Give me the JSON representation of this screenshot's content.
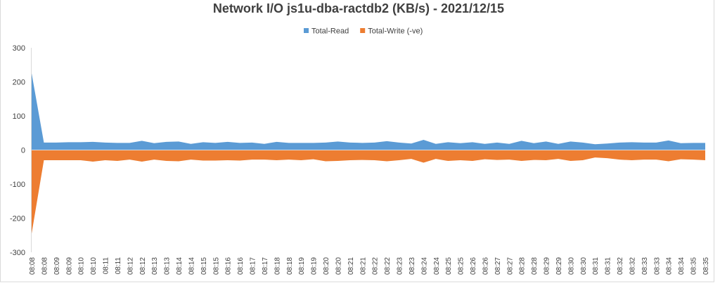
{
  "chart_data": {
    "type": "area",
    "title": "Network I/O js1u-dba-ractdb2 (KB/s) - 2021/12/15",
    "categories": [
      "08:08",
      "08:08",
      "08:09",
      "08:09",
      "08:10",
      "08:10",
      "08:11",
      "08:11",
      "08:12",
      "08:12",
      "08:13",
      "08:13",
      "08:14",
      "08:14",
      "08:15",
      "08:15",
      "08:16",
      "08:16",
      "08:17",
      "08:17",
      "08:18",
      "08:18",
      "08:19",
      "08:19",
      "08:20",
      "08:20",
      "08:21",
      "08:21",
      "08:22",
      "08:22",
      "08:23",
      "08:23",
      "08:24",
      "08:24",
      "08:25",
      "08:25",
      "08:26",
      "08:26",
      "08:27",
      "08:27",
      "08:28",
      "08:28",
      "08:29",
      "08:29",
      "08:30",
      "08:30",
      "08:31",
      "08:31",
      "08:32",
      "08:32",
      "08:33",
      "08:33",
      "08:34",
      "08:34",
      "08:35",
      "08:35"
    ],
    "series": [
      {
        "name": "Total-Read",
        "color": "#5b9bd5",
        "values": [
          225,
          22,
          22,
          23,
          23,
          24,
          22,
          21,
          21,
          27,
          20,
          24,
          25,
          18,
          23,
          21,
          24,
          21,
          22,
          18,
          24,
          21,
          21,
          21,
          22,
          25,
          22,
          21,
          22,
          26,
          22,
          19,
          30,
          18,
          23,
          20,
          23,
          18,
          22,
          18,
          27,
          20,
          25,
          18,
          25,
          22,
          17,
          19,
          22,
          23,
          22,
          22,
          28,
          20,
          21,
          21
        ]
      },
      {
        "name": "Total-Write (-ve)",
        "color": "#ed7d31",
        "values": [
          -245,
          -30,
          -30,
          -30,
          -30,
          -34,
          -30,
          -32,
          -28,
          -34,
          -28,
          -32,
          -33,
          -28,
          -31,
          -31,
          -30,
          -31,
          -28,
          -28,
          -30,
          -28,
          -30,
          -27,
          -33,
          -32,
          -30,
          -29,
          -30,
          -33,
          -30,
          -26,
          -37,
          -26,
          -32,
          -30,
          -32,
          -27,
          -29,
          -28,
          -32,
          -29,
          -30,
          -26,
          -32,
          -30,
          -22,
          -24,
          -28,
          -30,
          -28,
          -28,
          -33,
          -27,
          -28,
          -30
        ]
      }
    ],
    "ylim": [
      -300,
      300
    ],
    "yticks": [
      -300,
      -200,
      -100,
      0,
      100,
      200,
      300
    ],
    "grid": false,
    "legend": "top"
  }
}
